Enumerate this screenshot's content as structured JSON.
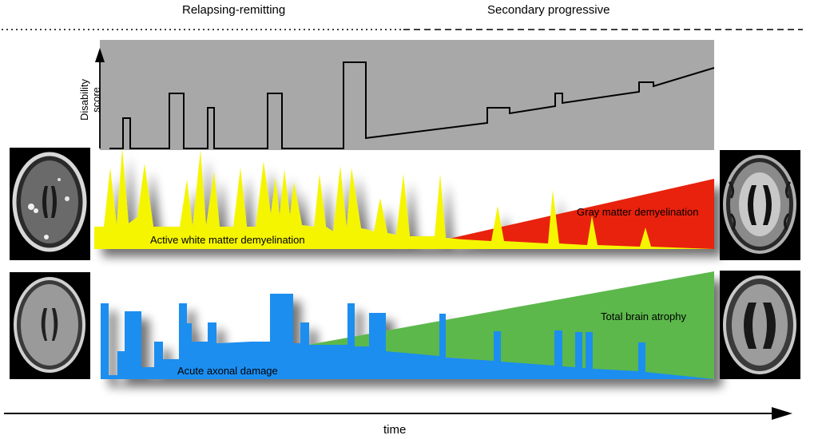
{
  "phases": {
    "relapsing": "Relapsing-remitting",
    "secondary": "Secondary progressive"
  },
  "disability": {
    "axis_label": "Disability score",
    "background": "#a8a8a8"
  },
  "panels": {
    "white_matter": {
      "label": "Active white matter demyelination",
      "color": "#f5f500"
    },
    "gray_matter": {
      "label": "Gray matter demyelination",
      "color": "#e8200a"
    },
    "atrophy": {
      "label": "Total brain atrophy",
      "color": "#5cb84c"
    },
    "axonal": {
      "label": "Acute axonal damage",
      "color": "#1e8ef0"
    }
  },
  "time_label": "time",
  "icons": [
    "mri-brain-image-early-lesions",
    "mri-brain-image-late-demyelination",
    "mri-brain-image-early-normal",
    "mri-brain-image-late-atrophy"
  ]
}
